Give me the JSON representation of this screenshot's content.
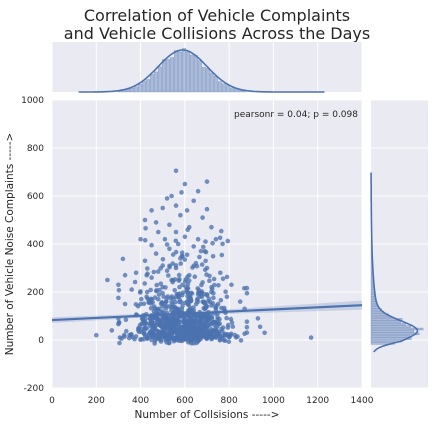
{
  "chart_data": {
    "type": "scatter",
    "subtype": "jointplot",
    "title_lines": [
      "Correlation of Vehicle Complaints",
      "and Vehicle Collisions Across the Days"
    ],
    "xlabel": "Number of Collsisions ----->",
    "ylabel": "Number of Vehicle Noise Complaints ----->",
    "xlim": [
      0,
      1400
    ],
    "ylim": [
      -200,
      1000
    ],
    "x_ticks": [
      "0",
      "200",
      "400",
      "600",
      "800",
      "1000",
      "1200",
      "1400"
    ],
    "y_ticks": [
      "-200",
      "0",
      "200",
      "400",
      "600",
      "800",
      "1000"
    ],
    "annotation": "pearsonr = 0.04; p = 0.098",
    "pearsonr": 0.04,
    "p_value": 0.098,
    "regression_line": {
      "x": [
        0,
        1400
      ],
      "y": [
        83,
        145
      ]
    },
    "grid": true,
    "colors": {
      "points": "#4c72b0",
      "line": "#4c72b0",
      "background": "#eaeaf2",
      "grid": "#ffffff"
    },
    "marginal_x": {
      "kind": "histogram+kde",
      "center": 590,
      "spread": 105,
      "range": [
        120,
        1230
      ]
    },
    "marginal_y": {
      "kind": "histogram+kde",
      "mode": 40,
      "range": [
        -50,
        700
      ]
    },
    "points": [
      [
        560,
        705
      ],
      [
        700,
        660
      ],
      [
        600,
        650
      ],
      [
        585,
        615
      ],
      [
        540,
        600
      ],
      [
        520,
        590
      ],
      [
        660,
        620
      ],
      [
        640,
        580
      ],
      [
        700,
        545
      ],
      [
        500,
        550
      ],
      [
        450,
        540
      ],
      [
        610,
        540
      ],
      [
        560,
        560
      ],
      [
        580,
        520
      ],
      [
        420,
        500
      ],
      [
        470,
        490
      ],
      [
        680,
        510
      ],
      [
        530,
        480
      ],
      [
        620,
        470
      ],
      [
        720,
        470
      ],
      [
        560,
        450
      ],
      [
        480,
        450
      ],
      [
        600,
        430
      ],
      [
        660,
        420
      ],
      [
        510,
        420
      ],
      [
        400,
        420
      ],
      [
        740,
        420
      ],
      [
        570,
        400
      ],
      [
        450,
        395
      ],
      [
        640,
        390
      ],
      [
        530,
        380
      ],
      [
        690,
        370
      ],
      [
        470,
        360
      ],
      [
        610,
        355
      ],
      [
        580,
        340
      ],
      [
        420,
        330
      ],
      [
        650,
        320
      ],
      [
        500,
        310
      ],
      [
        700,
        300
      ],
      [
        560,
        300
      ],
      [
        380,
        280
      ],
      [
        330,
        270
      ],
      [
        760,
        280
      ],
      [
        250,
        250
      ],
      [
        300,
        230
      ],
      [
        810,
        230
      ],
      [
        880,
        195
      ],
      [
        850,
        160
      ],
      [
        200,
        20
      ],
      [
        1170,
        10
      ],
      [
        960,
        30
      ],
      [
        940,
        55
      ],
      [
        930,
        90
      ],
      [
        870,
        130
      ],
      [
        270,
        40
      ],
      [
        300,
        90
      ],
      [
        330,
        150
      ],
      [
        360,
        210
      ],
      [
        790,
        180
      ],
      [
        780,
        120
      ],
      [
        450,
        260
      ],
      [
        620,
        270
      ],
      [
        540,
        250
      ],
      [
        590,
        230
      ],
      [
        680,
        240
      ],
      [
        500,
        220
      ],
      [
        430,
        200
      ],
      [
        720,
        200
      ],
      [
        660,
        190
      ],
      [
        570,
        180
      ],
      [
        480,
        170
      ],
      [
        610,
        160
      ],
      [
        400,
        150
      ],
      [
        750,
        150
      ],
      [
        530,
        140
      ],
      [
        690,
        130
      ],
      [
        460,
        120
      ],
      [
        580,
        110
      ],
      [
        640,
        100
      ],
      [
        510,
        90
      ],
      [
        710,
        85
      ],
      [
        420,
        75
      ],
      [
        560,
        60
      ],
      [
        600,
        45
      ],
      [
        490,
        30
      ],
      [
        660,
        25
      ],
      [
        380,
        15
      ],
      [
        740,
        10
      ],
      [
        520,
        5
      ],
      [
        550,
        -5
      ],
      [
        620,
        0
      ],
      [
        450,
        0
      ],
      [
        700,
        5
      ],
      [
        350,
        20
      ],
      [
        800,
        15
      ]
    ]
  }
}
